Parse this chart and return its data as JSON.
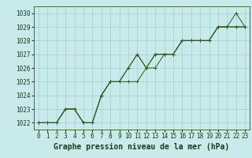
{
  "title": "Graphe pression niveau de la mer (hPa)",
  "background_color": "#c8eaea",
  "grid_color": "#9dcfcf",
  "line_color": "#2d5a1b",
  "marker_color": "#2d5a1b",
  "xlim": [
    -0.5,
    23.5
  ],
  "ylim": [
    1021.5,
    1030.5
  ],
  "xticks": [
    0,
    1,
    2,
    3,
    4,
    5,
    6,
    7,
    8,
    9,
    10,
    11,
    12,
    13,
    14,
    15,
    16,
    17,
    18,
    19,
    20,
    21,
    22,
    23
  ],
  "yticks": [
    1022,
    1023,
    1024,
    1025,
    1026,
    1027,
    1028,
    1029,
    1030
  ],
  "series": [
    [
      1022,
      1022,
      1022,
      1023,
      1023,
      1022,
      1022,
      1024,
      1025,
      1025,
      1026,
      1027,
      1026,
      1027,
      1027,
      1027,
      1028,
      1028,
      1028,
      1028,
      1029,
      1029,
      1030,
      1029
    ],
    [
      1022,
      1022,
      1022,
      1023,
      1023,
      1022,
      1022,
      1024,
      1025,
      1025,
      1025,
      1025,
      1026,
      1026,
      1027,
      1027,
      1028,
      1028,
      1028,
      1028,
      1029,
      1029,
      1029,
      1029
    ],
    [
      1022,
      1022,
      1022,
      1023,
      1023,
      1022,
      1022,
      1024,
      1025,
      1025,
      1026,
      1027,
      1026,
      1027,
      1027,
      1027,
      1028,
      1028,
      1028,
      1028,
      1029,
      1029,
      1029,
      1029
    ]
  ],
  "title_fontsize": 7,
  "tick_fontsize": 5.5,
  "title_color": "#1a3a1a",
  "tick_color": "#1a3a1a",
  "title_fontfamily": "monospace"
}
